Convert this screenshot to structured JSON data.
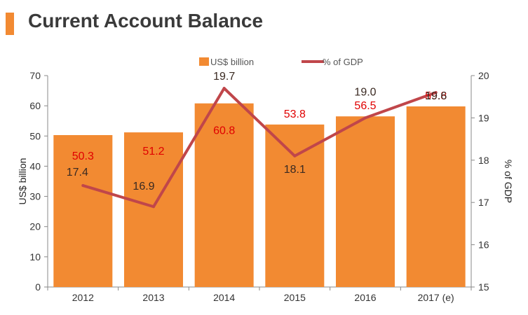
{
  "title": "Current Account Balance",
  "colors": {
    "bar": "#f28a32",
    "line": "#c0464a",
    "bar_label": "#e00000",
    "line_label": "#3a2a22",
    "accent": "#f28a32"
  },
  "chart_data": {
    "type": "bar",
    "categories": [
      "2012",
      "2013",
      "2014",
      "2015",
      "2016",
      "2017 (e)"
    ],
    "series": [
      {
        "name": "US$ billion",
        "type": "bar",
        "axis": "left",
        "values": [
          50.3,
          51.2,
          60.8,
          53.8,
          56.5,
          59.8
        ],
        "labels": [
          "50.3",
          "51.2",
          "60.8",
          "53.8",
          "56.5",
          "59.8"
        ]
      },
      {
        "name": "% of GDP",
        "type": "line",
        "axis": "right",
        "values": [
          17.4,
          16.9,
          19.7,
          18.1,
          19.0,
          19.6
        ],
        "labels": [
          "17.4",
          "16.9",
          "19.7",
          "18.1",
          "19.0",
          "19.6"
        ]
      }
    ],
    "ylabel": "US$ billion",
    "y2label": "% of GDP",
    "ylim": [
      0,
      70
    ],
    "y2lim": [
      15,
      20
    ],
    "yticks": [
      "0",
      "10",
      "20",
      "30",
      "40",
      "50",
      "60",
      "70"
    ],
    "y2ticks": [
      "15",
      "16",
      "17",
      "18",
      "19",
      "20"
    ],
    "legend_position": "top-center",
    "grid": false
  }
}
